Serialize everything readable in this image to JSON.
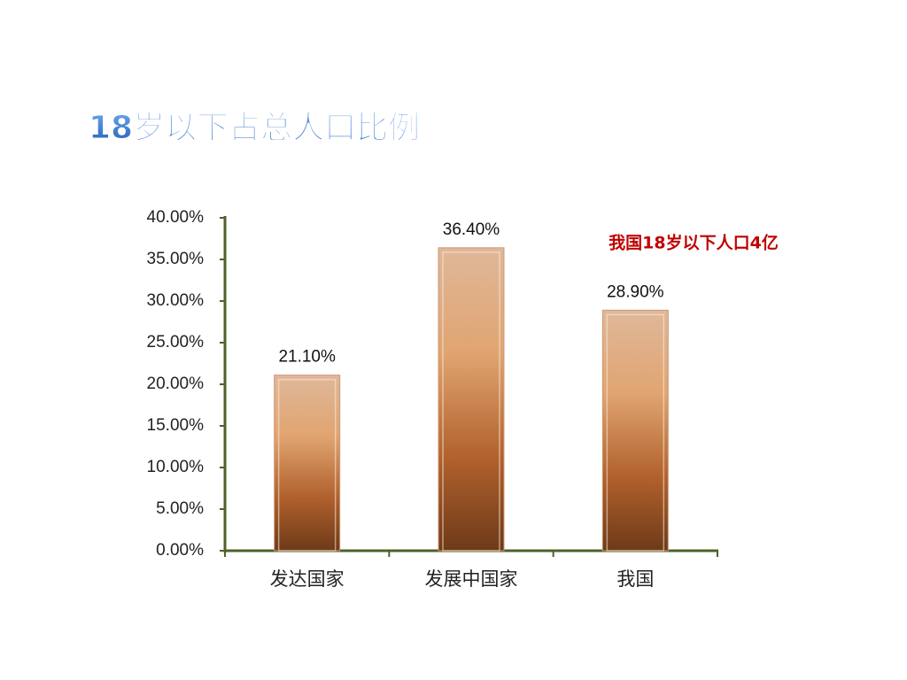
{
  "chart_data": {
    "type": "bar",
    "title": "18岁以下占总人口比例",
    "annotation": "我国18岁以下人口4亿",
    "categories": [
      "发达国家",
      "发展中国家",
      "我国"
    ],
    "values": [
      21.1,
      36.4,
      28.9
    ],
    "value_labels": [
      "21.10%",
      "36.40%",
      "28.90%"
    ],
    "ylim": [
      0,
      40
    ],
    "yticks": [
      {
        "value": 0,
        "label": "0.00%"
      },
      {
        "value": 5,
        "label": "5.00%"
      },
      {
        "value": 10,
        "label": "10.00%"
      },
      {
        "value": 15,
        "label": "15.00%"
      },
      {
        "value": 20,
        "label": "20.00%"
      },
      {
        "value": 25,
        "label": "25.00%"
      },
      {
        "value": 30,
        "label": "30.00%"
      },
      {
        "value": 35,
        "label": "35.00%"
      },
      {
        "value": 40,
        "label": "40.00%"
      }
    ],
    "grid": false
  }
}
